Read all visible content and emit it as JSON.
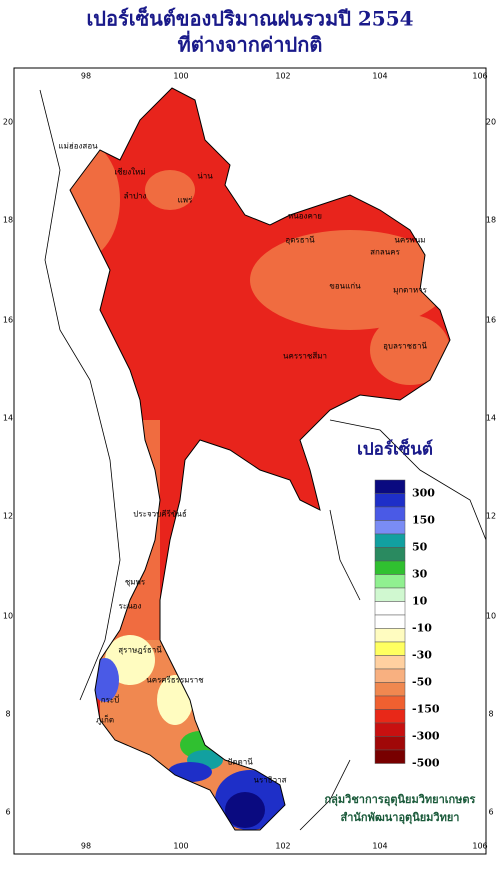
{
  "header": {
    "title_line1": "เปอร์เซ็นต์ของปริมาณฝนรวมปี 2554",
    "title_line2": "ที่ต่างจากค่าปกติ"
  },
  "axes": {
    "lon_ticks": [
      "98",
      "100",
      "102",
      "104",
      "106"
    ],
    "lat_ticks": [
      "20",
      "18",
      "16",
      "14",
      "12",
      "10",
      "8",
      "6"
    ]
  },
  "legend": {
    "title": "เปอร์เซ็นต์",
    "labels": [
      "300",
      "150",
      "50",
      "30",
      "10",
      "-10",
      "-30",
      "-50",
      "-150",
      "-300",
      "-500"
    ],
    "colors": [
      "#0a0a80",
      "#1e2fc8",
      "#4a5ae6",
      "#7a8cf5",
      "#12a0a0",
      "#2a8a60",
      "#30c030",
      "#90f090",
      "#d0f8d0",
      "#ffffff",
      "#ffffff",
      "#fffcc0",
      "#ffff60",
      "#ffd0a0",
      "#f8b080",
      "#f08850",
      "#f06030",
      "#e82818",
      "#c81010",
      "#a00808",
      "#780000"
    ]
  },
  "provinces": [
    "แม่ฮ่องสอน",
    "เชียงใหม่",
    "ลำปาง",
    "น่าน",
    "แพร่",
    "หนองคาย",
    "อุดรธานี",
    "นครพนม",
    "สกลนคร",
    "มุกดาหาร",
    "ขอนแก่น",
    "อุบลราชธานี",
    "นครราชสีมา",
    "ประจวบคีรีขันธ์",
    "ชุมพร",
    "ระนอง",
    "สุราษฎร์ธานี",
    "นครศรีธรรมราช",
    "กระบี่",
    "ภูเก็ต",
    "ปัตตานี",
    "นราธิวาส"
  ],
  "credits": {
    "line1": "กลุ่มวิชาการอุตุนิยมวิทยาเกษตร",
    "line2": "สำนักพัฒนาอุตุนิยมวิทยา"
  }
}
